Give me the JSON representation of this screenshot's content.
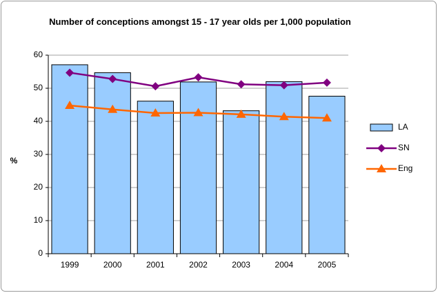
{
  "chart_data": {
    "type": "bar",
    "title": "Number of conceptions amongst 15 - 17 year olds per 1,000 population",
    "ylabel": "%",
    "categories": [
      "1999",
      "2000",
      "2001",
      "2002",
      "2003",
      "2004",
      "2005"
    ],
    "series": [
      {
        "name": "LA",
        "type": "bar",
        "color": "#99ccff",
        "values": [
          57.1,
          54.7,
          46.1,
          51.9,
          43.2,
          52.0,
          47.6
        ]
      },
      {
        "name": "SN",
        "type": "line",
        "marker": "diamond",
        "color": "#800080",
        "values": [
          54.7,
          52.8,
          50.6,
          53.3,
          51.2,
          50.9,
          51.7
        ]
      },
      {
        "name": "Eng",
        "type": "line",
        "marker": "triangle",
        "color": "#ff6600",
        "values": [
          44.8,
          43.6,
          42.5,
          42.6,
          42.1,
          41.4,
          41.0
        ]
      }
    ],
    "ylim": [
      0,
      60
    ],
    "yticks": [
      0,
      10,
      20,
      30,
      40,
      50,
      60
    ],
    "grid": true,
    "legend": "right"
  }
}
